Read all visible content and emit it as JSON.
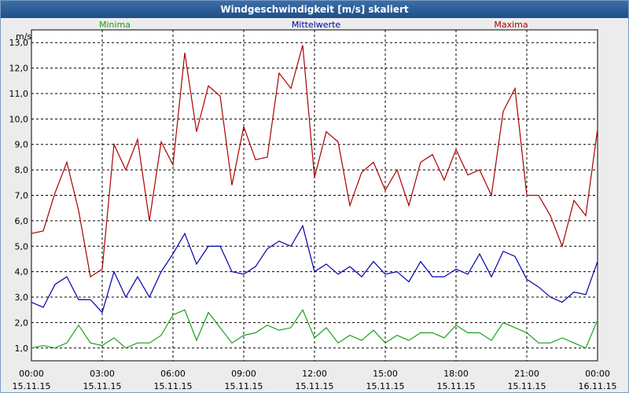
{
  "window": {
    "title": "Windgeschwindigkeit [m/s] skaliert"
  },
  "colors": {
    "minima": "#1aa01a",
    "mittel": "#0000aa",
    "maxima": "#aa0000",
    "grid": "#000000"
  },
  "chart_data": {
    "type": "line",
    "title": "Windgeschwindigkeit [m/s] skaliert",
    "ylabel": "m/s",
    "xlabel": "",
    "ylim": [
      0.5,
      13.5
    ],
    "xlim": [
      0,
      24
    ],
    "grid": true,
    "legend": [
      "Minima",
      "Mittelwerte",
      "Maxima"
    ],
    "y_ticks": [
      "1,0",
      "2,0",
      "3,0",
      "4,0",
      "5,0",
      "6,0",
      "7,0",
      "8,0",
      "9,0",
      "10,0",
      "11,0",
      "12,0",
      "13,0"
    ],
    "x_ticks": [
      {
        "time": "00:00",
        "date": "15.11.15"
      },
      {
        "time": "03:00",
        "date": "15.11.15"
      },
      {
        "time": "06:00",
        "date": "15.11.15"
      },
      {
        "time": "09:00",
        "date": "15.11.15"
      },
      {
        "time": "12:00",
        "date": "15.11.15"
      },
      {
        "time": "15:00",
        "date": "15.11.15"
      },
      {
        "time": "18:00",
        "date": "15.11.15"
      },
      {
        "time": "21:00",
        "date": "15.11.15"
      },
      {
        "time": "00:00",
        "date": "16.11.15"
      }
    ],
    "x": [
      0,
      0.5,
      1,
      1.5,
      2,
      2.5,
      3,
      3.5,
      4,
      4.5,
      5,
      5.5,
      6,
      6.5,
      7,
      7.5,
      8,
      8.5,
      9,
      9.5,
      10,
      10.5,
      11,
      11.5,
      12,
      12.5,
      13,
      13.5,
      14,
      14.5,
      15,
      15.5,
      16,
      16.5,
      17,
      17.5,
      18,
      18.5,
      19,
      19.5,
      20,
      20.5,
      21,
      21.5,
      22,
      22.5,
      23,
      23.5,
      24
    ],
    "series": [
      {
        "name": "Maxima",
        "values": [
          5.5,
          5.6,
          7.1,
          8.3,
          6.4,
          3.8,
          4.1,
          9.0,
          8.0,
          9.2,
          6.0,
          9.1,
          8.2,
          12.6,
          9.5,
          11.3,
          10.9,
          7.4,
          9.7,
          8.4,
          8.5,
          11.8,
          11.2,
          12.9,
          7.7,
          9.5,
          9.1,
          6.6,
          7.9,
          8.3,
          7.2,
          8.0,
          6.6,
          8.3,
          8.6,
          7.6,
          8.8,
          7.8,
          8.0,
          7.0,
          10.3,
          11.2,
          7.0,
          7.0,
          6.2,
          5.0,
          6.8,
          6.2,
          9.6
        ]
      },
      {
        "name": "Mittelwerte",
        "values": [
          2.8,
          2.6,
          3.5,
          3.8,
          2.9,
          2.9,
          2.4,
          4.0,
          3.0,
          3.8,
          3.0,
          4.0,
          4.7,
          5.5,
          4.3,
          5.0,
          5.0,
          4.0,
          3.9,
          4.2,
          4.9,
          5.2,
          5.0,
          5.8,
          4.0,
          4.3,
          3.9,
          4.2,
          3.8,
          4.4,
          3.9,
          4.0,
          3.6,
          4.4,
          3.8,
          3.8,
          4.1,
          3.9,
          4.7,
          3.8,
          4.8,
          4.6,
          3.7,
          3.4,
          3.0,
          2.8,
          3.2,
          3.1,
          4.4
        ]
      },
      {
        "name": "Minima",
        "values": [
          1.0,
          1.1,
          1.0,
          1.2,
          1.9,
          1.2,
          1.1,
          1.4,
          1.0,
          1.2,
          1.2,
          1.5,
          2.3,
          2.5,
          1.3,
          2.4,
          1.8,
          1.2,
          1.5,
          1.6,
          1.9,
          1.7,
          1.8,
          2.5,
          1.4,
          1.8,
          1.2,
          1.5,
          1.3,
          1.7,
          1.2,
          1.5,
          1.3,
          1.6,
          1.6,
          1.4,
          1.9,
          1.6,
          1.6,
          1.3,
          2.0,
          1.8,
          1.6,
          1.2,
          1.2,
          1.4,
          1.2,
          1.0,
          2.1
        ]
      }
    ]
  }
}
